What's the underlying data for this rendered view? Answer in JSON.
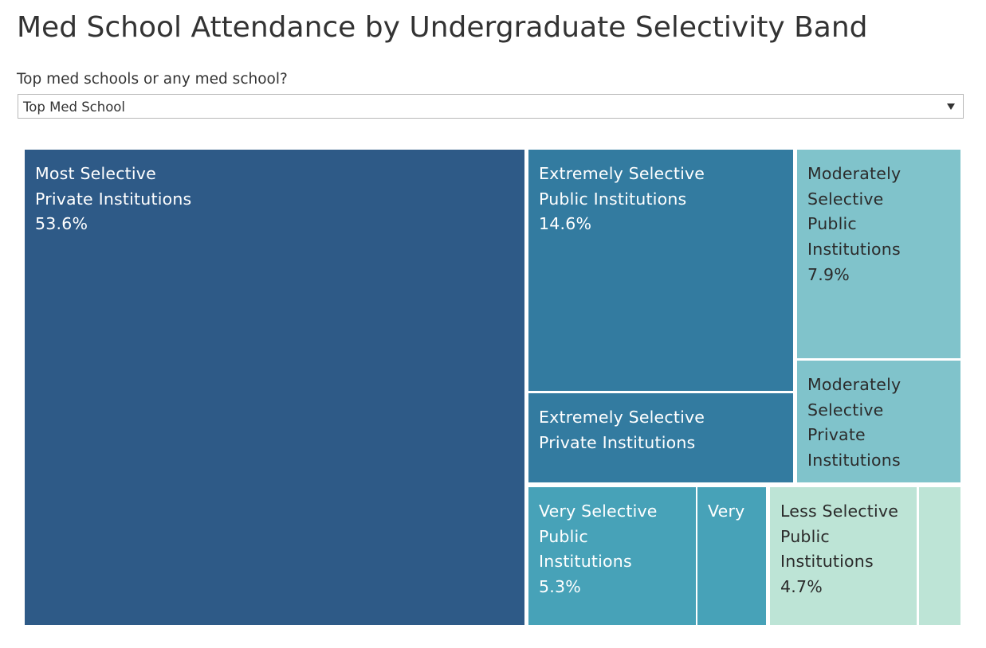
{
  "page": {
    "title": "Med School Attendance by Undergraduate Selectivity Band"
  },
  "filter": {
    "label": "Top med schools or any med school?",
    "selected": "Top Med School",
    "icon": "caret-down-icon"
  },
  "chart_data": {
    "type": "treemap",
    "title": "Med School Attendance by Undergraduate Selectivity Band",
    "unit": "%",
    "cells": [
      {
        "name": "most-selective-private",
        "label_lines": [
          "Most Selective",
          "Private Institutions"
        ],
        "value_label": "53.6%",
        "value": 53.6,
        "color": "#2e5a87",
        "text_color": "#ffffff"
      },
      {
        "name": "extremely-selective-public",
        "label_lines": [
          "Extremely Selective",
          "Public Institutions"
        ],
        "value_label": "14.6%",
        "value": 14.6,
        "color": "#337ba0",
        "text_color": "#ffffff"
      },
      {
        "name": "extremely-selective-private",
        "label_lines": [
          "Extremely Selective",
          "Private Institutions"
        ],
        "value_label": "",
        "value": null,
        "color": "#337ba0",
        "text_color": "#ffffff"
      },
      {
        "name": "moderately-selective-public",
        "label_lines": [
          "Moderately",
          "Selective",
          "Public",
          "Institutions"
        ],
        "value_label": "7.9%",
        "value": 7.9,
        "color": "#80c3cb",
        "text_color": "#2b2b2b"
      },
      {
        "name": "moderately-selective-private",
        "label_lines": [
          "Moderately",
          "Selective",
          "Private",
          "Institutions"
        ],
        "value_label": "",
        "value": null,
        "color": "#80c3cb",
        "text_color": "#2b2b2b"
      },
      {
        "name": "very-selective-public",
        "label_lines": [
          "Very Selective",
          "Public",
          "Institutions"
        ],
        "value_label": "5.3%",
        "value": 5.3,
        "color": "#47a2b8",
        "text_color": "#ffffff"
      },
      {
        "name": "very-selective-private",
        "label_lines": [
          "Very"
        ],
        "value_label": "",
        "value": null,
        "color": "#47a2b8",
        "text_color": "#ffffff"
      },
      {
        "name": "less-selective-public",
        "label_lines": [
          "Less Selective",
          "Public",
          "Institutions"
        ],
        "value_label": "4.7%",
        "value": 4.7,
        "color": "#bde4d6",
        "text_color": "#2b2b2b"
      },
      {
        "name": "less-selective-private",
        "label_lines": [],
        "value_label": "",
        "value": null,
        "color": "#bde4d6",
        "text_color": "#2b2b2b"
      }
    ]
  }
}
